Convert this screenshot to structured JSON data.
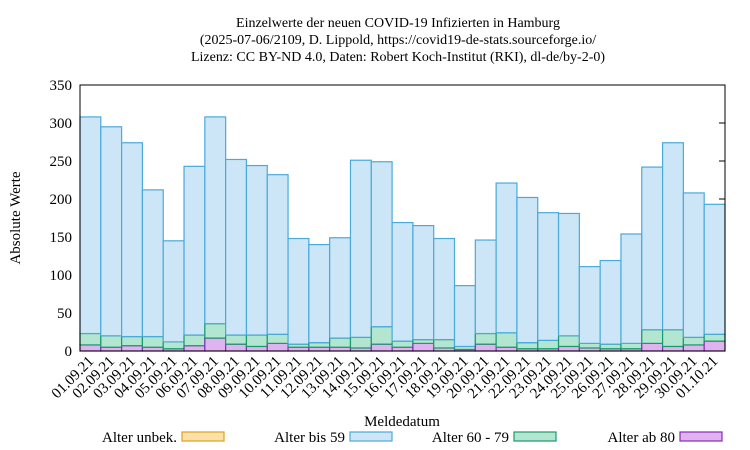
{
  "chart_data": {
    "type": "stacked_bar",
    "title_lines": [
      "Einzelwerte der neuen COVID-19 Infizierten in Hamburg",
      "(2025-07-06/2109, D. Lippold, https://covid19-de-stats.sourceforge.io/",
      "Lizenz: CC BY-ND 4.0, Daten: Robert Koch-Institut (RKI), dl-de/by-2-0)"
    ],
    "x_label": "Meldedatum",
    "y_label": "Absolute Werte",
    "categories": [
      "01.09.21",
      "02.09.21",
      "03.09.21",
      "04.09.21",
      "05.09.21",
      "06.09.21",
      "07.09.21",
      "08.09.21",
      "09.09.21",
      "10.09.21",
      "11.09.21",
      "12.09.21",
      "13.09.21",
      "14.09.21",
      "15.09.21",
      "16.09.21",
      "17.09.21",
      "18.09.21",
      "19.09.21",
      "20.09.21",
      "21.09.21",
      "22.09.21",
      "23.09.21",
      "24.09.21",
      "25.09.21",
      "26.09.21",
      "27.09.21",
      "28.09.21",
      "29.09.21",
      "30.09.21",
      "01.10.21"
    ],
    "series": [
      {
        "name": "Alter unbek.",
        "color": "#f9e1a8",
        "stroke": "#e0a020",
        "values": [
          0,
          0,
          0,
          0,
          0,
          0,
          0,
          0,
          0,
          0,
          0,
          0,
          0,
          0,
          0,
          0,
          0,
          0,
          0,
          0,
          0,
          0,
          0,
          0,
          0,
          0,
          0,
          0,
          0,
          0,
          0
        ]
      },
      {
        "name": "Alter bis 59",
        "color": "#cce6f8",
        "stroke": "#4aaad8",
        "values": [
          285,
          275,
          255,
          193,
          133,
          222,
          272,
          231,
          223,
          210,
          139,
          129,
          132,
          233,
          217,
          156,
          150,
          133,
          80,
          123,
          197,
          191,
          168,
          161,
          101,
          110,
          144,
          214,
          246,
          190,
          171
        ]
      },
      {
        "name": "Alter 60 - 79",
        "color": "#b3e6d0",
        "stroke": "#1a9a6a",
        "values": [
          15,
          15,
          12,
          14,
          9,
          14,
          19,
          12,
          15,
          12,
          4,
          6,
          12,
          14,
          23,
          8,
          5,
          11,
          4,
          14,
          19,
          8,
          11,
          14,
          6,
          6,
          7,
          18,
          22,
          10,
          9
        ]
      },
      {
        "name": "Alter ab 80",
        "color": "#dfb3f0",
        "stroke": "#8a2ab8",
        "values": [
          8,
          5,
          7,
          5,
          3,
          7,
          17,
          9,
          6,
          10,
          5,
          5,
          5,
          4,
          9,
          5,
          10,
          4,
          2,
          9,
          5,
          3,
          3,
          6,
          4,
          3,
          3,
          10,
          6,
          8,
          13
        ]
      }
    ],
    "ylim": [
      0,
      350
    ],
    "yticks": [
      0,
      50,
      100,
      150,
      200,
      250,
      300,
      350
    ],
    "grid": false
  }
}
